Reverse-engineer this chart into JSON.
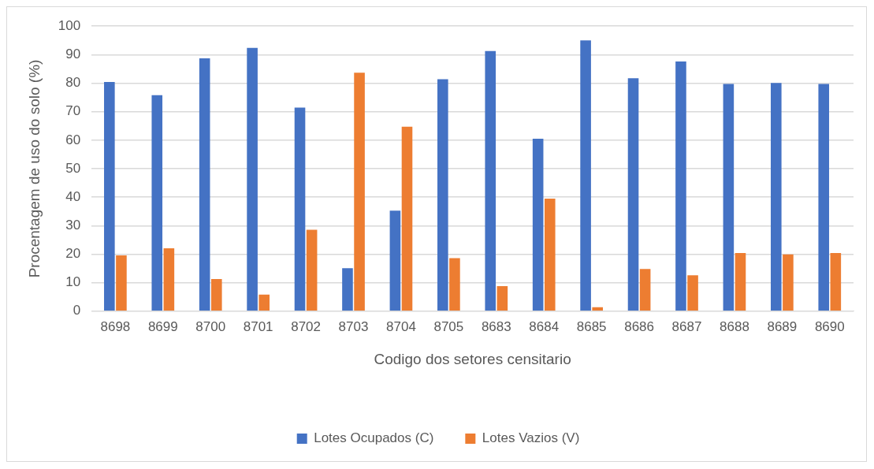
{
  "chart_data": {
    "type": "bar",
    "xlabel": "Codigo dos setores censitario",
    "ylabel": "Procentagem de uso do solo (%)",
    "categories": [
      "8698",
      "8699",
      "8700",
      "8701",
      "8702",
      "8703",
      "8704",
      "8705",
      "8683",
      "8684",
      "8685",
      "8686",
      "8687",
      "8688",
      "8689",
      "8690"
    ],
    "series": [
      {
        "name": "Lotes Ocupados (C)",
        "color": "#4472c4",
        "values": [
          80.4,
          75.8,
          88.7,
          92.4,
          71.4,
          15.1,
          35.3,
          81.4,
          91.3,
          60.5,
          95.0,
          81.7,
          87.6,
          79.7,
          80.1,
          79.7
        ]
      },
      {
        "name": "Lotes Vazios (V)",
        "color": "#ed7d31",
        "values": [
          19.6,
          22.1,
          11.3,
          5.8,
          28.6,
          83.7,
          64.7,
          18.6,
          8.8,
          39.5,
          1.4,
          14.8,
          12.6,
          20.4,
          19.9,
          20.4
        ]
      }
    ],
    "ylim": [
      0,
      100
    ],
    "yticks": [
      0,
      10,
      20,
      30,
      40,
      50,
      60,
      70,
      80,
      90,
      100
    ],
    "grid": "y",
    "legend": "bottom"
  }
}
